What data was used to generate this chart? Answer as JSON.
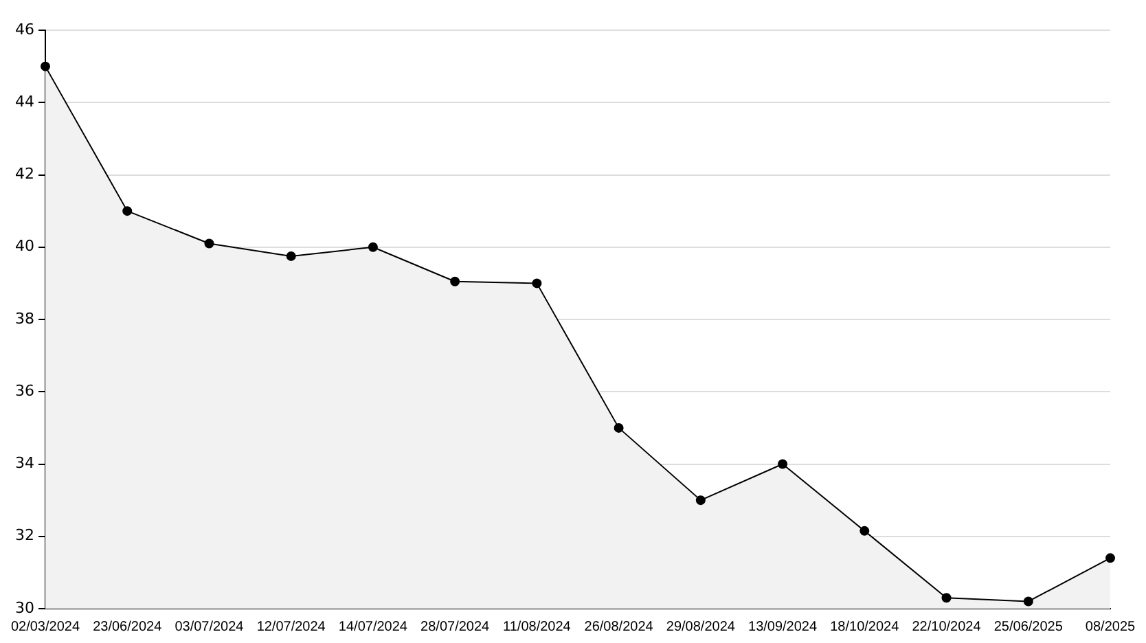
{
  "chart_data": {
    "type": "area",
    "categories": [
      "02/03/2024",
      "23/06/2024",
      "03/07/2024",
      "12/07/2024",
      "14/07/2024",
      "28/07/2024",
      "11/08/2024",
      "26/08/2024",
      "29/08/2024",
      "13/09/2024",
      "18/10/2024",
      "22/10/2024",
      "25/06/2025",
      "08/2025"
    ],
    "series": [
      {
        "color": "#000000",
        "values": [
          45,
          41,
          40.1,
          39.75,
          40,
          39.05,
          39,
          35,
          33,
          34,
          32.15,
          30.3,
          30.2,
          31.4
        ]
      }
    ],
    "ylim": [
      30,
      46
    ],
    "yticks": [
      30,
      32,
      34,
      36,
      38,
      40,
      42,
      44,
      46
    ],
    "grid": "y",
    "legend": false,
    "marker": "circle",
    "line_style": "solid"
  }
}
